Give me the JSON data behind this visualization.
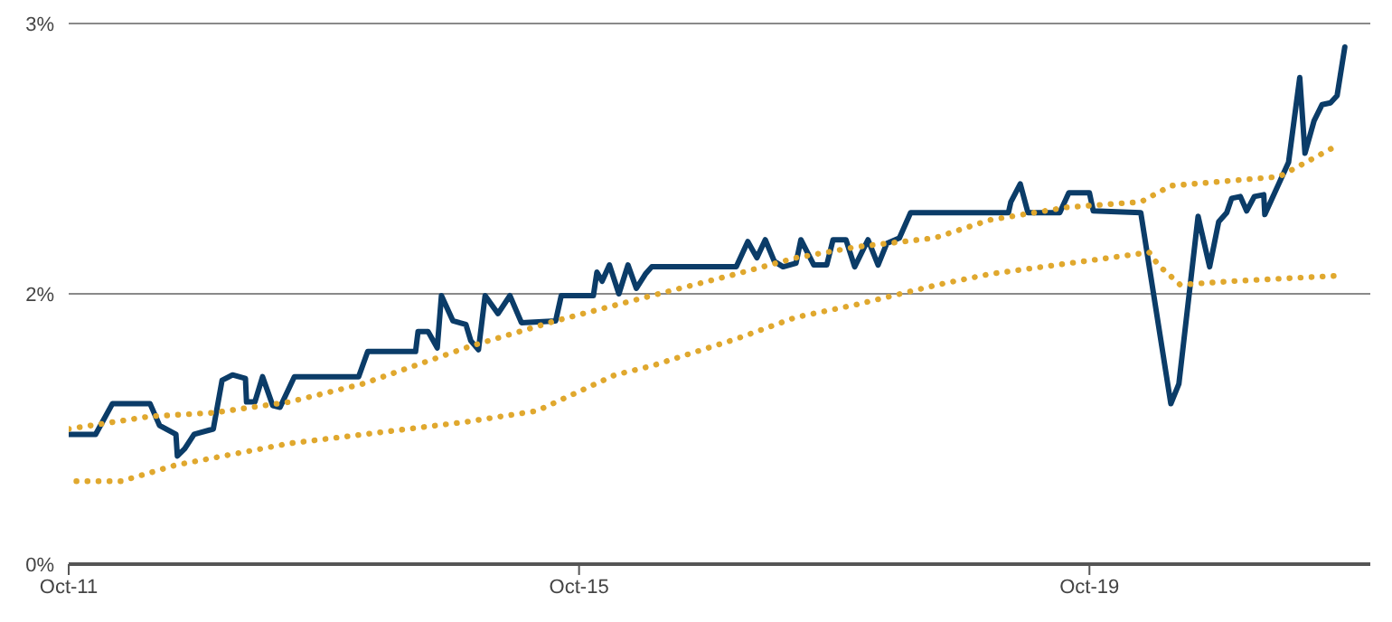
{
  "chart_data": {
    "type": "line",
    "xlim": [
      "2011-10-01",
      "2021-12-13"
    ],
    "xticks": [
      {
        "value": "2011-10-01",
        "label": "Oct-11"
      },
      {
        "value": "2015-10-01",
        "label": "Oct-15"
      },
      {
        "value": "2019-10-01",
        "label": "Oct-19"
      }
    ],
    "ylim": [
      0,
      3
    ],
    "yticks": [
      {
        "value": 0,
        "label": "0%"
      },
      {
        "value": 1.5,
        "label": "2%"
      },
      {
        "value": 3,
        "label": "3%"
      }
    ],
    "grid": "y",
    "series": [
      {
        "color": "#0b3c68",
        "line_style": "solid",
        "x": [
          "2011-10-01",
          "2011-12-17",
          "2012-02-03",
          "2012-05-21",
          "2012-06-17",
          "2012-08-03",
          "2012-08-07",
          "2012-08-28",
          "2012-09-24",
          "2012-11-18",
          "2012-12-13",
          "2013-01-12",
          "2013-02-18",
          "2013-02-21",
          "2013-03-17",
          "2013-04-08",
          "2013-05-07",
          "2013-05-28",
          "2013-07-08",
          "2014-01-08",
          "2014-02-03",
          "2014-06-20",
          "2014-06-27",
          "2014-07-26",
          "2014-08-21",
          "2014-09-02",
          "2014-10-05",
          "2014-11-11",
          "2014-11-25",
          "2014-12-17",
          "2015-01-05",
          "2015-02-11",
          "2015-03-17",
          "2015-04-19",
          "2015-07-26",
          "2015-08-11",
          "2015-11-11",
          "2015-11-21",
          "2015-12-06",
          "2015-12-27",
          "2016-01-23",
          "2016-02-18",
          "2016-03-13",
          "2016-04-08",
          "2016-04-26",
          "2016-12-24",
          "2017-01-26",
          "2017-02-21",
          "2017-03-17",
          "2017-04-12",
          "2017-05-07",
          "2017-06-13",
          "2017-06-27",
          "2017-08-03",
          "2017-09-09",
          "2017-09-27",
          "2017-11-03",
          "2017-11-28",
          "2018-01-05",
          "2018-02-03",
          "2018-02-28",
          "2018-04-05",
          "2018-05-07",
          "2019-02-11",
          "2019-02-18",
          "2019-03-17",
          "2019-04-08",
          "2019-07-08",
          "2019-08-03",
          "2019-10-01",
          "2019-10-12",
          "2020-02-25",
          "2020-05-21",
          "2020-06-13",
          "2020-08-07",
          "2020-09-09",
          "2020-10-05",
          "2020-10-28",
          "2020-11-11",
          "2020-12-06",
          "2020-12-24",
          "2021-01-15",
          "2021-02-11",
          "2021-02-14",
          "2021-04-23",
          "2021-05-25",
          "2021-06-09",
          "2021-07-05",
          "2021-07-28",
          "2021-08-21",
          "2021-09-09",
          "2021-10-01"
        ],
        "values": [
          0.72,
          0.72,
          0.89,
          0.89,
          0.77,
          0.72,
          0.6,
          0.64,
          0.72,
          0.75,
          1.02,
          1.05,
          1.03,
          0.9,
          0.9,
          1.04,
          0.88,
          0.87,
          1.04,
          1.04,
          1.18,
          1.18,
          1.29,
          1.29,
          1.2,
          1.49,
          1.35,
          1.33,
          1.24,
          1.19,
          1.49,
          1.39,
          1.49,
          1.34,
          1.35,
          1.49,
          1.49,
          1.62,
          1.57,
          1.66,
          1.5,
          1.66,
          1.53,
          1.61,
          1.65,
          1.65,
          1.79,
          1.7,
          1.8,
          1.68,
          1.65,
          1.67,
          1.8,
          1.66,
          1.66,
          1.8,
          1.8,
          1.65,
          1.8,
          1.66,
          1.78,
          1.81,
          1.95,
          1.95,
          2.01,
          2.11,
          1.95,
          1.95,
          2.06,
          2.06,
          1.96,
          1.95,
          0.89,
          1.0,
          1.93,
          1.65,
          1.9,
          1.95,
          2.03,
          2.04,
          1.96,
          2.04,
          2.05,
          1.94,
          2.23,
          2.7,
          2.28,
          2.46,
          2.55,
          2.56,
          2.6,
          2.87
        ]
      },
      {
        "color": "#e0a82e",
        "line_style": "dotted",
        "x": [
          "2011-10-01",
          "2012-05-21",
          "2012-11-18",
          "2013-06-24",
          "2014-01-19",
          "2014-11-25",
          "2015-07-26",
          "2016-04-26",
          "2016-12-24",
          "2017-06-13",
          "2017-12-02",
          "2018-07-15",
          "2018-12-20",
          "2019-07-28",
          "2020-02-25",
          "2020-05-21",
          "2021-03-27",
          "2021-09-06"
        ],
        "values": [
          0.75,
          0.82,
          0.84,
          0.9,
          1.0,
          1.21,
          1.35,
          1.49,
          1.61,
          1.7,
          1.76,
          1.81,
          1.91,
          1.98,
          2.01,
          2.1,
          2.15,
          2.32
        ]
      },
      {
        "color": "#e0a82e",
        "line_style": "dotted",
        "x": [
          "2011-10-23",
          "2012-02-28",
          "2012-08-03",
          "2013-06-24",
          "2014-11-14",
          "2015-06-02",
          "2016-01-12",
          "2016-04-26",
          "2016-12-24",
          "2017-06-13",
          "2017-12-02",
          "2018-07-23",
          "2018-12-20",
          "2019-11-28",
          "2020-03-20",
          "2020-04-15",
          "2020-06-17",
          "2020-11-11",
          "2021-09-06"
        ],
        "values": [
          0.46,
          0.46,
          0.55,
          0.67,
          0.79,
          0.85,
          1.05,
          1.1,
          1.25,
          1.37,
          1.44,
          1.55,
          1.61,
          1.7,
          1.73,
          1.66,
          1.55,
          1.57,
          1.6
        ]
      }
    ]
  }
}
